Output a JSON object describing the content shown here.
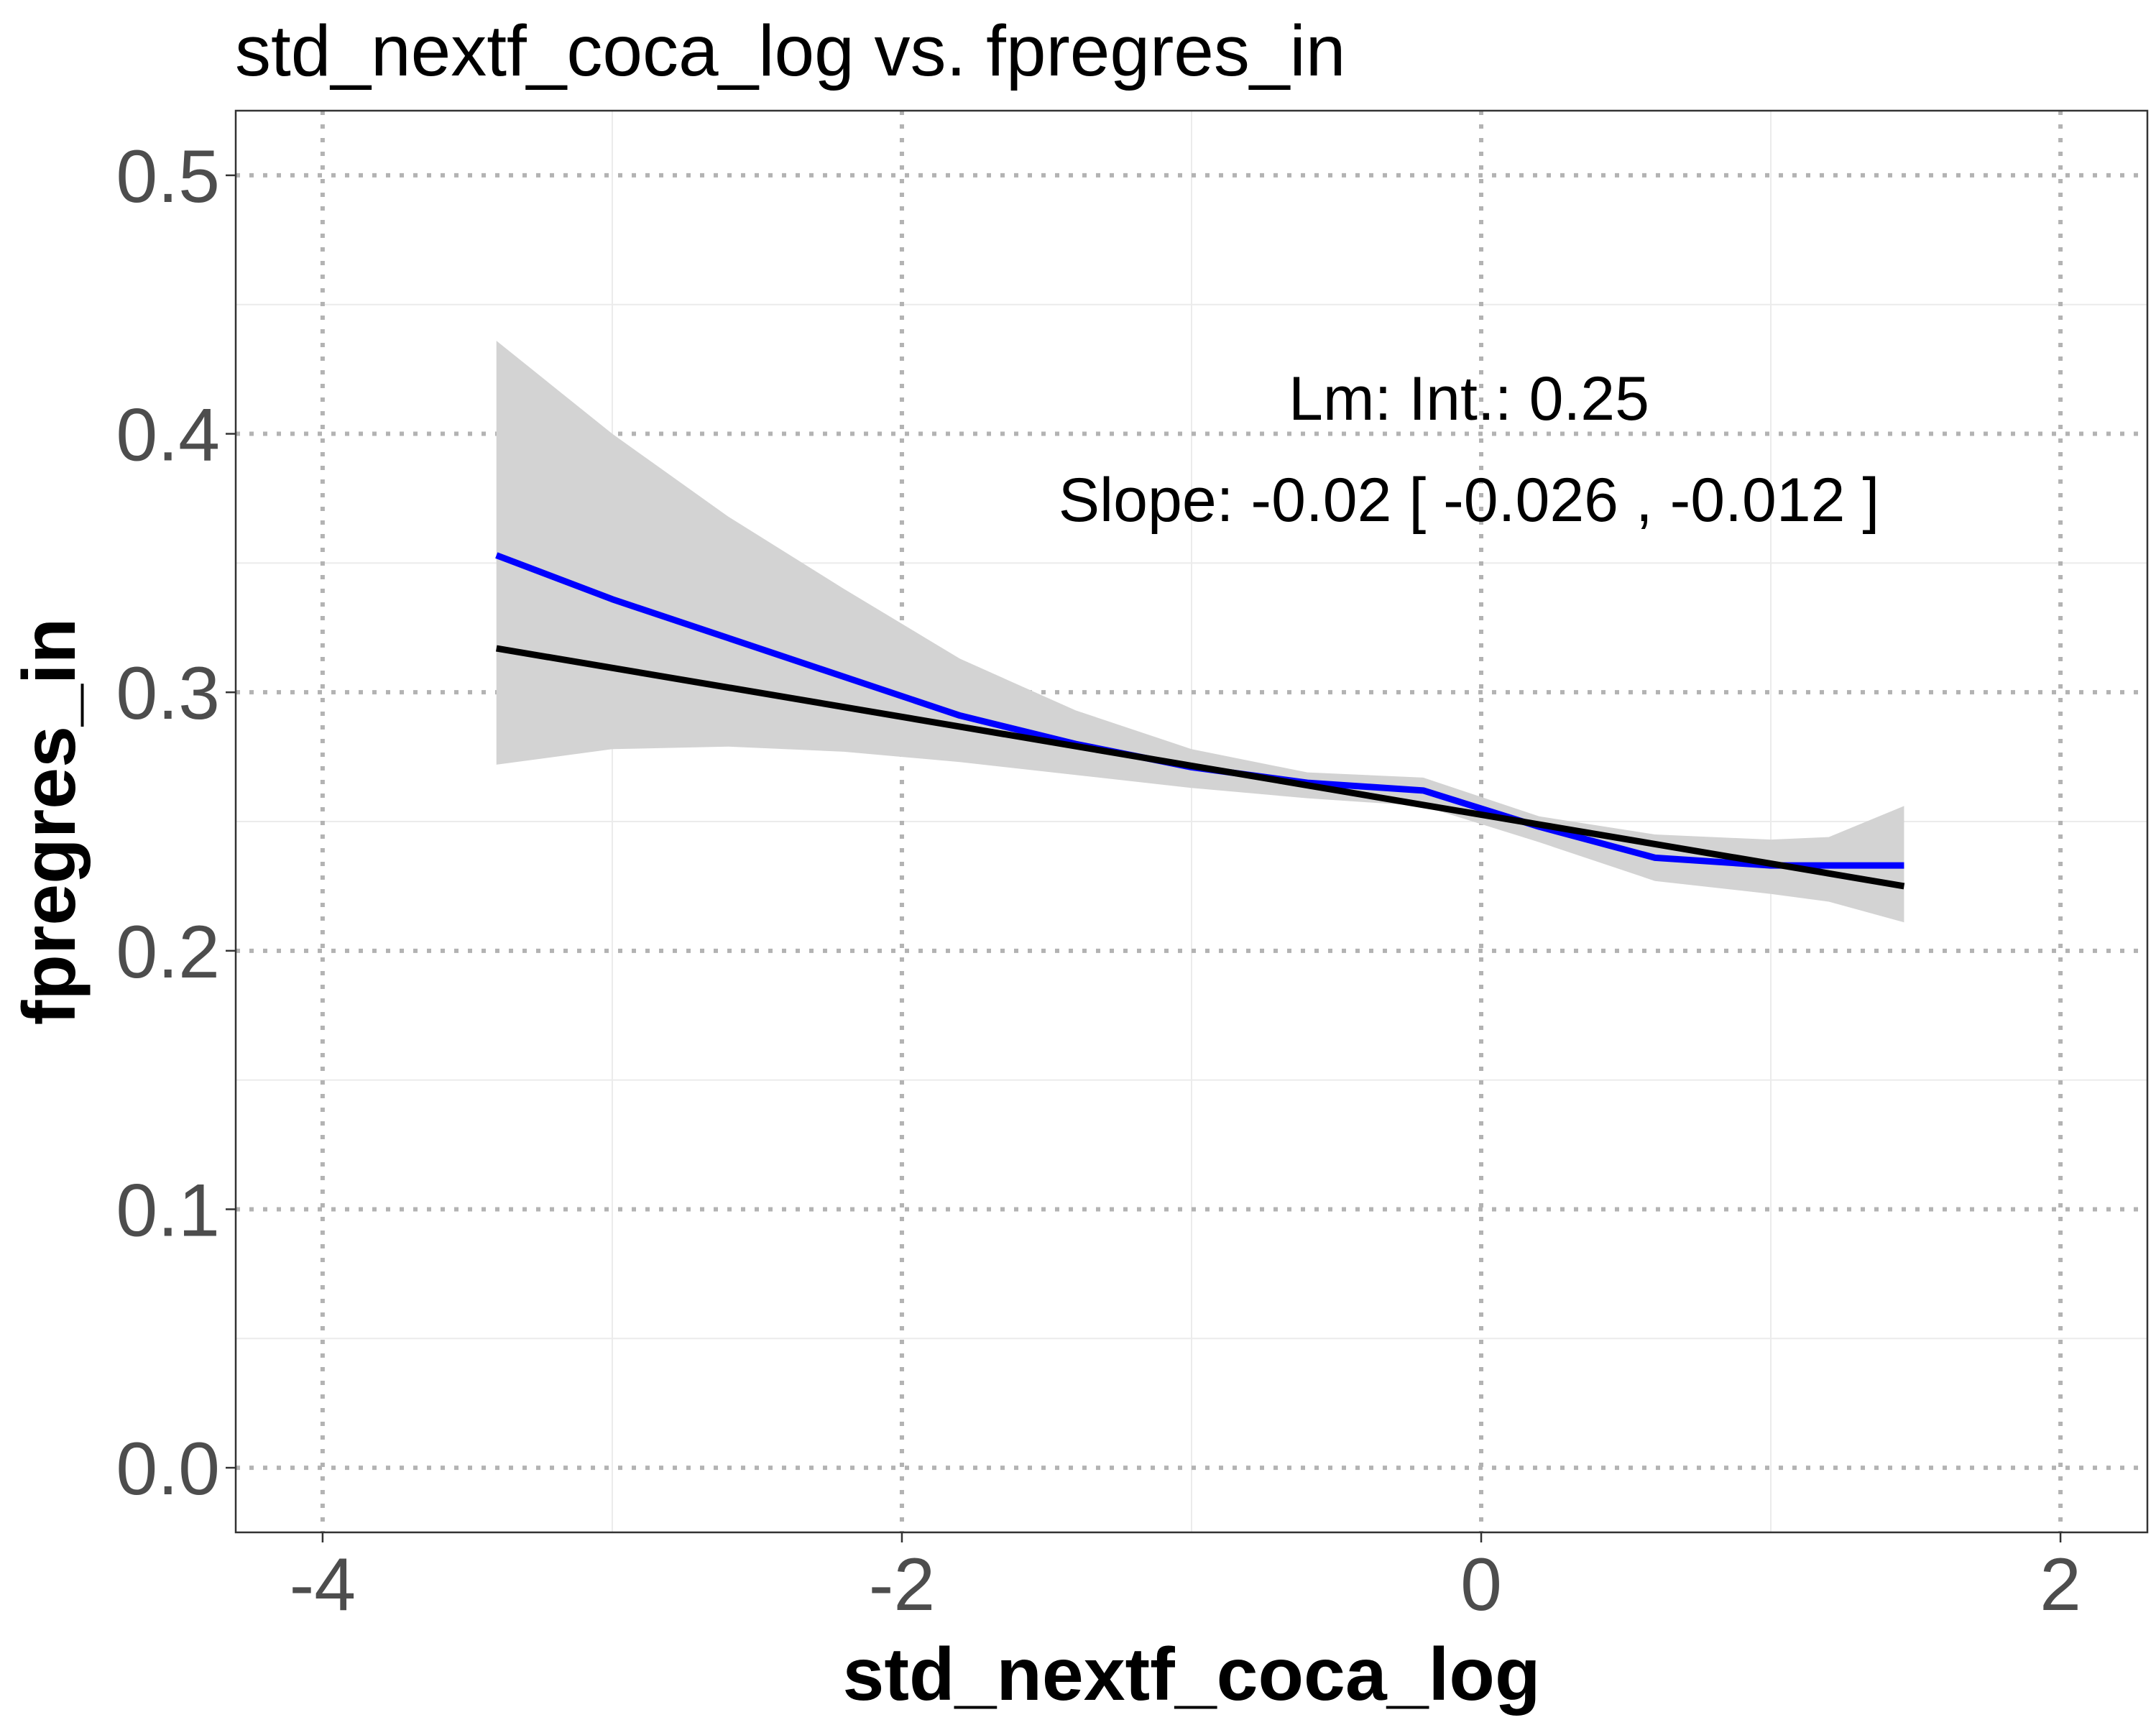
{
  "chart_data": {
    "type": "line",
    "title": "std_nextf_coca_log vs. fpregres_in",
    "xlabel": "std_nextf_coca_log",
    "ylabel": "fpregres_in",
    "xlim": [
      -4.3,
      2.3
    ],
    "ylim": [
      -0.025,
      0.525
    ],
    "x_ticks": [
      -4,
      -2,
      0,
      2
    ],
    "x_tick_labels": [
      "-4",
      "-2",
      "0",
      "2"
    ],
    "y_ticks": [
      0.0,
      0.1,
      0.2,
      0.3,
      0.4,
      0.5
    ],
    "y_tick_labels": [
      "0.0",
      "0.1",
      "0.2",
      "0.3",
      "0.4",
      "0.5"
    ],
    "grid": true,
    "legend": "none",
    "annotations": [
      "Lm: Int.: 0.25",
      "Slope: -0.02 [ -0.026 , -0.012 ]"
    ],
    "series": [
      {
        "kind": "confidence_band",
        "color": "#d3d3d3",
        "x": [
          -3.4,
          -3.0,
          -2.6,
          -2.2,
          -1.8,
          -1.4,
          -1.0,
          -0.6,
          -0.2,
          0.2,
          0.6,
          1.0,
          1.2,
          1.46
        ],
        "lower": [
          0.272,
          0.278,
          0.279,
          0.277,
          0.273,
          0.268,
          0.263,
          0.259,
          0.256,
          0.242,
          0.227,
          0.222,
          0.219,
          0.211
        ],
        "upper": [
          0.436,
          0.4,
          0.368,
          0.34,
          0.313,
          0.293,
          0.278,
          0.269,
          0.267,
          0.252,
          0.245,
          0.243,
          0.244,
          0.256
        ]
      },
      {
        "kind": "loess",
        "color": "#0000ff",
        "x": [
          -3.4,
          -3.0,
          -2.6,
          -2.2,
          -1.8,
          -1.4,
          -1.0,
          -0.6,
          -0.2,
          0.2,
          0.6,
          1.0,
          1.2,
          1.46
        ],
        "y": [
          0.353,
          0.336,
          0.321,
          0.306,
          0.291,
          0.28,
          0.271,
          0.265,
          0.262,
          0.248,
          0.236,
          0.233,
          0.233,
          0.233
        ]
      },
      {
        "kind": "linear_fit",
        "color": "#000000",
        "x": [
          -3.4,
          1.46
        ],
        "y": [
          0.317,
          0.225
        ]
      }
    ]
  }
}
